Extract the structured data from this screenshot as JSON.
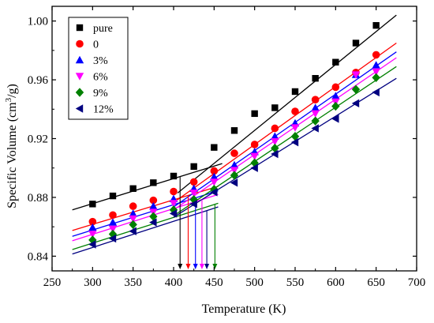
{
  "chart_data": {
    "type": "scatter",
    "title": "",
    "xlabel": "Temperature (K)",
    "ylabel_main": "Specific Volume (cm",
    "ylabel_sup": "3",
    "ylabel_tail": "/g)",
    "xlim": [
      250,
      700
    ],
    "ylim": [
      0.83,
      1.01
    ],
    "xticks": [
      250,
      300,
      350,
      400,
      450,
      500,
      550,
      600,
      650,
      700
    ],
    "yticks": [
      0.84,
      0.88,
      0.92,
      0.96,
      1.0
    ],
    "ytick_labels": [
      "0.84",
      "0.88",
      "0.92",
      "0.96",
      "1.00"
    ],
    "grid": false,
    "legend_position": "top-left",
    "x": [
      300,
      325,
      350,
      375,
      400,
      425,
      450,
      475,
      500,
      525,
      550,
      575,
      600,
      625,
      650
    ],
    "series": [
      {
        "name": "pure",
        "color": "#000000",
        "marker": "square",
        "values": [
          0.8755,
          0.881,
          0.886,
          0.89,
          0.8945,
          0.901,
          0.914,
          0.9255,
          0.937,
          0.941,
          0.952,
          0.961,
          0.972,
          0.985,
          0.997
        ],
        "fit_low": {
          "x": [
            275,
            460
          ],
          "y": [
            0.8715,
            0.903
          ]
        },
        "fit_high": {
          "x": [
            405,
            675
          ],
          "y": [
            0.883,
            1.004
          ]
        },
        "tg": 408
      },
      {
        "name": "0",
        "color": "#ff0000",
        "marker": "circle",
        "values": [
          0.8635,
          0.868,
          0.874,
          0.878,
          0.884,
          0.8905,
          0.898,
          0.91,
          0.916,
          0.927,
          0.9385,
          0.9465,
          0.955,
          0.965,
          0.977
        ],
        "fit_low": {
          "x": [
            275,
            455
          ],
          "y": [
            0.8575,
            0.8875
          ]
        },
        "fit_high": {
          "x": [
            400,
            675
          ],
          "y": [
            0.8765,
            0.985
          ]
        },
        "tg": 418
      },
      {
        "name": "3%",
        "color": "#0000ff",
        "marker": "triangle-up",
        "values": [
          0.8595,
          0.863,
          0.869,
          0.874,
          0.879,
          0.886,
          0.894,
          0.902,
          0.911,
          0.9215,
          0.9305,
          0.941,
          0.949,
          0.9635,
          0.97
        ],
        "fit_low": {
          "x": [
            275,
            455
          ],
          "y": [
            0.8535,
            0.8845
          ]
        },
        "fit_high": {
          "x": [
            400,
            675
          ],
          "y": [
            0.8735,
            0.979
          ]
        },
        "tg": 427
      },
      {
        "name": "6%",
        "color": "#ff00ff",
        "marker": "triangle-down",
        "values": [
          0.855,
          0.8585,
          0.8655,
          0.87,
          0.876,
          0.883,
          0.8905,
          0.8985,
          0.908,
          0.918,
          0.9275,
          0.937,
          0.945,
          0.9635,
          0.9655
        ],
        "fit_low": {
          "x": [
            275,
            455
          ],
          "y": [
            0.8505,
            0.882
          ]
        },
        "fit_high": {
          "x": [
            400,
            675
          ],
          "y": [
            0.8715,
            0.975
          ]
        },
        "tg": 435
      },
      {
        "name": "9%",
        "color": "#008000",
        "marker": "diamond",
        "values": [
          0.851,
          0.855,
          0.8615,
          0.867,
          0.8715,
          0.8785,
          0.8855,
          0.895,
          0.9035,
          0.9135,
          0.9215,
          0.932,
          0.942,
          0.9535,
          0.9615
        ],
        "fit_low": {
          "x": [
            275,
            455
          ],
          "y": [
            0.8445,
            0.876
          ]
        },
        "fit_high": {
          "x": [
            400,
            675
          ],
          "y": [
            0.8675,
            0.969
          ]
        },
        "tg": 451
      },
      {
        "name": "12%",
        "color": "#000080",
        "marker": "triangle-left",
        "values": [
          0.848,
          0.852,
          0.857,
          0.863,
          0.869,
          0.8755,
          0.8835,
          0.89,
          0.9,
          0.9095,
          0.9175,
          0.927,
          0.9335,
          0.944,
          0.9515
        ],
        "fit_low": {
          "x": [
            275,
            455
          ],
          "y": [
            0.8415,
            0.8735
          ]
        },
        "fit_high": {
          "x": [
            400,
            675
          ],
          "y": [
            0.8665,
            0.961
          ]
        },
        "tg": 441
      }
    ]
  }
}
